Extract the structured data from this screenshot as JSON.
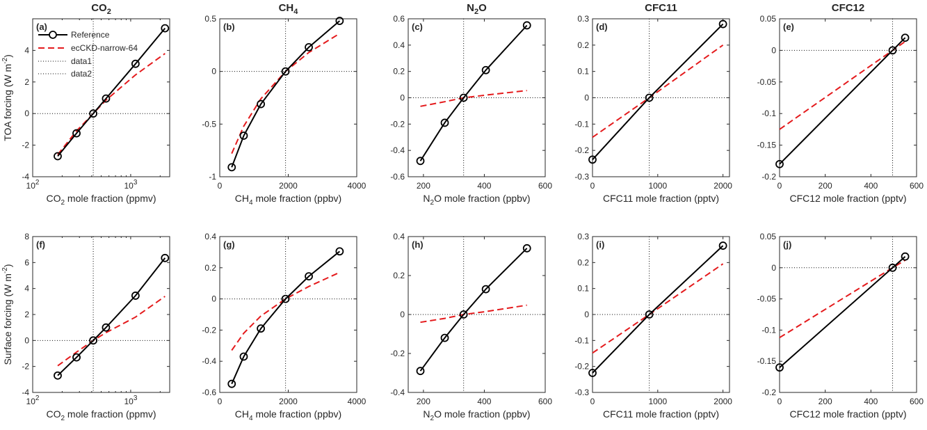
{
  "column_titles": [
    {
      "main": "CO",
      "sub": "2"
    },
    {
      "main": "CH",
      "sub": "4"
    },
    {
      "main": "N",
      "sub": "2",
      "post": "O"
    },
    {
      "main": "CFC11"
    },
    {
      "main": "CFC12"
    }
  ],
  "legend": {
    "entries": [
      "Reference",
      "ecCKD-narrow-64",
      "data1",
      "data2"
    ]
  },
  "colors": {
    "reference": "#000000",
    "ecckd": "#e41a1c",
    "axes": "#262626"
  },
  "chart_data": [
    {
      "type": "line",
      "panel": "(a)",
      "xscale": "log",
      "xlim": [
        100,
        2500
      ],
      "ylim": [
        -4,
        6
      ],
      "xticks": [
        100,
        1000
      ],
      "xtick_labels": [
        {
          "b": "10",
          "e": "2"
        },
        {
          "b": "10",
          "e": "3"
        }
      ],
      "yticks": [
        -4,
        -2,
        0,
        2,
        4
      ],
      "ytick_labels": [
        "-4",
        "-2",
        "0",
        "2",
        "4"
      ],
      "xlabel": {
        "pre": "CO",
        "sub": "2",
        "post": " mole fraction (ppmv)"
      },
      "ylabel": {
        "pre": "TOA forcing (W m",
        "sup": "-2",
        "post": ")"
      },
      "vline": 415,
      "hline": 0,
      "series": [
        {
          "name": "Reference",
          "x": [
            180,
            280,
            415,
            560,
            1120,
            2240
          ],
          "y": [
            -2.7,
            -1.25,
            0,
            0.95,
            3.15,
            5.4
          ]
        },
        {
          "name": "ecCKD-narrow-64",
          "x": [
            180,
            280,
            415,
            560,
            1120,
            2240
          ],
          "y": [
            -2.6,
            -1.1,
            0,
            0.85,
            2.45,
            3.8
          ]
        }
      ]
    },
    {
      "type": "line",
      "panel": "(b)",
      "xscale": "linear",
      "xlim": [
        0,
        4000
      ],
      "ylim": [
        -1,
        0.5
      ],
      "xticks": [
        0,
        2000,
        4000
      ],
      "xtick_labels": [
        "0",
        "2000",
        "4000"
      ],
      "yticks": [
        -1,
        -0.5,
        0,
        0.5
      ],
      "ytick_labels": [
        "-1",
        "-0.5",
        "0",
        "0.5"
      ],
      "xlabel": {
        "pre": "CH",
        "sub": "4",
        "post": " mole fraction (ppbv)"
      },
      "vline": 1921,
      "hline": 0,
      "series": [
        {
          "name": "Reference",
          "x": [
            350,
            700,
            1200,
            1921,
            2600,
            3500
          ],
          "y": [
            -0.91,
            -0.61,
            -0.31,
            0,
            0.23,
            0.48
          ]
        },
        {
          "name": "ecCKD-narrow-64",
          "x": [
            350,
            700,
            1200,
            1921,
            2600,
            3500
          ],
          "y": [
            -0.78,
            -0.52,
            -0.26,
            0,
            0.18,
            0.36
          ]
        }
      ]
    },
    {
      "type": "line",
      "panel": "(c)",
      "xscale": "linear",
      "xlim": [
        150,
        600
      ],
      "ylim": [
        -0.6,
        0.6
      ],
      "xticks": [
        200,
        400,
        600
      ],
      "xtick_labels": [
        "200",
        "400",
        "600"
      ],
      "yticks": [
        -0.6,
        -0.4,
        -0.2,
        0,
        0.2,
        0.4,
        0.6
      ],
      "ytick_labels": [
        "-0.6",
        "-0.4",
        "-0.2",
        "0",
        "0.2",
        "0.4",
        "0.6"
      ],
      "xlabel": {
        "pre": "N",
        "sub": "2",
        "post": "O mole fraction (ppbv)"
      },
      "vline": 332,
      "hline": 0,
      "series": [
        {
          "name": "Reference",
          "x": [
            190,
            270,
            332,
            405,
            540
          ],
          "y": [
            -0.48,
            -0.19,
            0,
            0.21,
            0.55
          ]
        },
        {
          "name": "ecCKD-narrow-64",
          "x": [
            190,
            270,
            332,
            405,
            540
          ],
          "y": [
            -0.065,
            -0.03,
            0,
            0.02,
            0.055
          ]
        }
      ]
    },
    {
      "type": "line",
      "panel": "(d)",
      "xscale": "linear",
      "xlim": [
        0,
        2100
      ],
      "ylim": [
        -0.3,
        0.3
      ],
      "xticks": [
        0,
        1000,
        2000
      ],
      "xtick_labels": [
        "0",
        "1000",
        "2000"
      ],
      "yticks": [
        -0.3,
        -0.2,
        -0.1,
        0,
        0.1,
        0.2,
        0.3
      ],
      "ytick_labels": [
        "-0.3",
        "-0.2",
        "-0.1",
        "0",
        "0.1",
        "0.2",
        "0.3"
      ],
      "xlabel": {
        "pre": "CFC11 mole fraction (pptv)"
      },
      "vline": 870,
      "hline": 0,
      "series": [
        {
          "name": "Reference",
          "x": [
            0,
            870,
            2000
          ],
          "y": [
            -0.235,
            0,
            0.28
          ]
        },
        {
          "name": "ecCKD-narrow-64",
          "x": [
            0,
            870,
            2000
          ],
          "y": [
            -0.15,
            0,
            0.2
          ]
        }
      ]
    },
    {
      "type": "line",
      "panel": "(e)",
      "xscale": "linear",
      "xlim": [
        0,
        600
      ],
      "ylim": [
        -0.2,
        0.05
      ],
      "xticks": [
        0,
        200,
        400,
        600
      ],
      "xtick_labels": [
        "0",
        "200",
        "400",
        "600"
      ],
      "yticks": [
        -0.2,
        -0.15,
        -0.1,
        -0.05,
        0,
        0.05
      ],
      "ytick_labels": [
        "-0.2",
        "-0.15",
        "-0.1",
        "-0.05",
        "0",
        "0.05"
      ],
      "xlabel": {
        "pre": "CFC12 mole fraction (pptv)"
      },
      "vline": 495,
      "hline": 0,
      "series": [
        {
          "name": "Reference",
          "x": [
            0,
            495,
            550
          ],
          "y": [
            -0.18,
            0,
            0.02
          ]
        },
        {
          "name": "ecCKD-narrow-64",
          "x": [
            0,
            495,
            550
          ],
          "y": [
            -0.125,
            0,
            0.014
          ]
        }
      ]
    },
    {
      "type": "line",
      "panel": "(f)",
      "xscale": "log",
      "xlim": [
        100,
        2500
      ],
      "ylim": [
        -4,
        8
      ],
      "xticks": [
        100,
        1000
      ],
      "xtick_labels": [
        {
          "b": "10",
          "e": "2"
        },
        {
          "b": "10",
          "e": "3"
        }
      ],
      "yticks": [
        -4,
        -2,
        0,
        2,
        4,
        6,
        8
      ],
      "ytick_labels": [
        "-4",
        "-2",
        "0",
        "2",
        "4",
        "6",
        "8"
      ],
      "xlabel": {
        "pre": "CO",
        "sub": "2",
        "post": " mole fraction (ppmv)"
      },
      "ylabel": {
        "pre": "Surface forcing (W m",
        "sup": "-2",
        "post": ")"
      },
      "vline": 415,
      "hline": 0,
      "series": [
        {
          "name": "Reference",
          "x": [
            180,
            280,
            415,
            560,
            1120,
            2240
          ],
          "y": [
            -2.7,
            -1.3,
            0,
            1.0,
            3.45,
            6.35
          ]
        },
        {
          "name": "ecCKD-narrow-64",
          "x": [
            180,
            280,
            415,
            560,
            1120,
            2240
          ],
          "y": [
            -1.95,
            -0.9,
            0,
            0.6,
            1.8,
            3.4
          ]
        }
      ]
    },
    {
      "type": "line",
      "panel": "(g)",
      "xscale": "linear",
      "xlim": [
        0,
        4000
      ],
      "ylim": [
        -0.6,
        0.4
      ],
      "xticks": [
        0,
        2000,
        4000
      ],
      "xtick_labels": [
        "0",
        "2000",
        "4000"
      ],
      "yticks": [
        -0.6,
        -0.4,
        -0.2,
        0,
        0.2,
        0.4
      ],
      "ytick_labels": [
        "-0.6",
        "-0.4",
        "-0.2",
        "0",
        "0.2",
        "0.4"
      ],
      "xlabel": {
        "pre": "CH",
        "sub": "4",
        "post": " mole fraction (ppbv)"
      },
      "vline": 1921,
      "hline": 0,
      "series": [
        {
          "name": "Reference",
          "x": [
            350,
            700,
            1200,
            1921,
            2600,
            3500
          ],
          "y": [
            -0.545,
            -0.37,
            -0.19,
            0,
            0.145,
            0.305
          ]
        },
        {
          "name": "ecCKD-narrow-64",
          "x": [
            350,
            700,
            1200,
            1921,
            2600,
            3500
          ],
          "y": [
            -0.33,
            -0.22,
            -0.11,
            0,
            0.08,
            0.17
          ]
        }
      ]
    },
    {
      "type": "line",
      "panel": "(h)",
      "xscale": "linear",
      "xlim": [
        150,
        600
      ],
      "ylim": [
        -0.4,
        0.4
      ],
      "xticks": [
        200,
        400,
        600
      ],
      "xtick_labels": [
        "200",
        "400",
        "600"
      ],
      "yticks": [
        -0.4,
        -0.2,
        0,
        0.2,
        0.4
      ],
      "ytick_labels": [
        "-0.4",
        "-0.2",
        "0",
        "0.2",
        "0.4"
      ],
      "xlabel": {
        "pre": "N",
        "sub": "2",
        "post": "O mole fraction (ppbv)"
      },
      "vline": 332,
      "hline": 0,
      "series": [
        {
          "name": "Reference",
          "x": [
            190,
            270,
            332,
            405,
            540
          ],
          "y": [
            -0.29,
            -0.12,
            0,
            0.13,
            0.34
          ]
        },
        {
          "name": "ecCKD-narrow-64",
          "x": [
            190,
            270,
            332,
            405,
            540
          ],
          "y": [
            -0.04,
            -0.02,
            0,
            0.015,
            0.048
          ]
        }
      ]
    },
    {
      "type": "line",
      "panel": "(i)",
      "xscale": "linear",
      "xlim": [
        0,
        2100
      ],
      "ylim": [
        -0.3,
        0.3
      ],
      "xticks": [
        0,
        1000,
        2000
      ],
      "xtick_labels": [
        "0",
        "1000",
        "2000"
      ],
      "yticks": [
        -0.3,
        -0.2,
        -0.1,
        0,
        0.1,
        0.2,
        0.3
      ],
      "ytick_labels": [
        "-0.3",
        "-0.2",
        "-0.1",
        "0",
        "0.1",
        "0.2",
        "0.3"
      ],
      "xlabel": {
        "pre": "CFC11 mole fraction (pptv)"
      },
      "vline": 870,
      "hline": 0,
      "series": [
        {
          "name": "Reference",
          "x": [
            0,
            870,
            2000
          ],
          "y": [
            -0.225,
            0,
            0.265
          ]
        },
        {
          "name": "ecCKD-narrow-64",
          "x": [
            0,
            870,
            2000
          ],
          "y": [
            -0.148,
            0,
            0.195
          ]
        }
      ]
    },
    {
      "type": "line",
      "panel": "(j)",
      "xscale": "linear",
      "xlim": [
        0,
        600
      ],
      "ylim": [
        -0.2,
        0.05
      ],
      "xticks": [
        0,
        200,
        400,
        600
      ],
      "xtick_labels": [
        "0",
        "200",
        "400",
        "600"
      ],
      "yticks": [
        -0.2,
        -0.15,
        -0.1,
        -0.05,
        0,
        0.05
      ],
      "ytick_labels": [
        "-0.2",
        "-0.15",
        "-0.1",
        "-0.05",
        "0",
        "0.05"
      ],
      "xlabel": {
        "pre": "CFC12 mole fraction (pptv)"
      },
      "vline": 495,
      "hline": 0,
      "series": [
        {
          "name": "Reference",
          "x": [
            0,
            495,
            550
          ],
          "y": [
            -0.16,
            0,
            0.018
          ]
        },
        {
          "name": "ecCKD-narrow-64",
          "x": [
            0,
            495,
            550
          ],
          "y": [
            -0.112,
            0,
            0.012
          ]
        }
      ]
    }
  ]
}
